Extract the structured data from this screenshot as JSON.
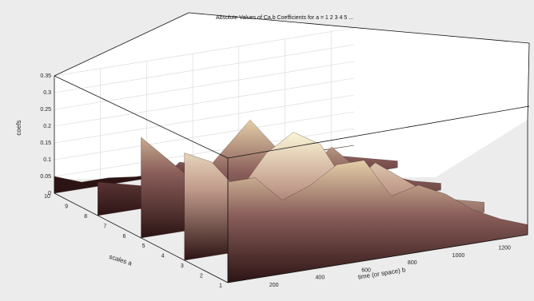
{
  "chart_data": {
    "type": "area",
    "title": "Absolute Values of Ca,b Coefficients for a = 1 2 3 4 5 ...",
    "xlabel": "time (or space) b",
    "ylabel": "scales a",
    "zlabel": "coefs",
    "x_ticks": [
      "200",
      "400",
      "600",
      "800",
      "1000",
      "1200"
    ],
    "y_ticks": [
      "1",
      "2",
      "3",
      "4",
      "5",
      "6",
      "7",
      "8",
      "9",
      "10"
    ],
    "z_ticks": [
      "0",
      "0.05",
      "0.1",
      "0.15",
      "0.2",
      "0.25",
      "0.3",
      "0.35"
    ],
    "xlim": [
      0,
      1300
    ],
    "ylim": [
      1,
      10
    ],
    "zlim": [
      0,
      0.35
    ],
    "grid": true,
    "series": [
      {
        "values": [
          0.05,
          0.02,
          0.02,
          0.01,
          0.01,
          0.01,
          0.005,
          0.005,
          0.003,
          0.002,
          0.001,
          0.0
        ]
      },
      {
        "values": [
          0.1,
          0.08,
          0.06,
          0.12,
          0.1,
          0.06,
          0.1,
          0.08,
          0.05,
          0.06,
          0.04,
          0.02
        ]
      },
      {
        "values": [
          0.3,
          0.22,
          0.14,
          0.22,
          0.3,
          0.2,
          0.12,
          0.18,
          0.1,
          0.07,
          0.04,
          0.02
        ]
      },
      {
        "values": [
          0.32,
          0.28,
          0.18,
          0.28,
          0.33,
          0.28,
          0.14,
          0.2,
          0.14,
          0.08,
          0.05,
          0.03
        ]
      },
      {
        "values": [
          0.3,
          0.3,
          0.22,
          0.25,
          0.3,
          0.3,
          0.18,
          0.2,
          0.16,
          0.1,
          0.06,
          0.03
        ]
      }
    ],
    "colormap": [
      "#2c1414",
      "#5a3434",
      "#8a5e5a",
      "#c09a8a",
      "#e4cfa8",
      "#fbf5d6"
    ]
  }
}
